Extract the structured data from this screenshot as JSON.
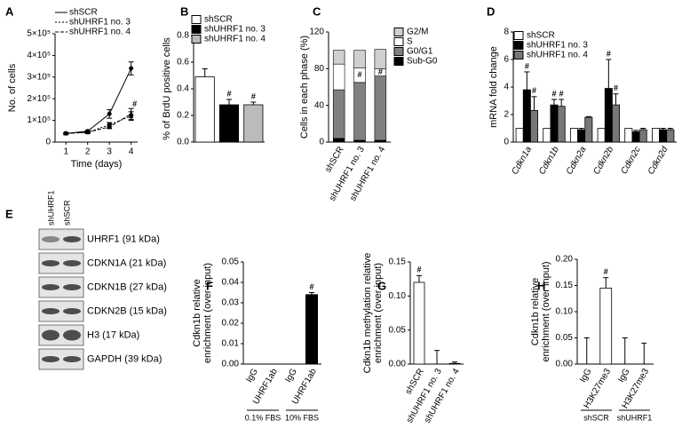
{
  "chart_data": [
    {
      "type": "line",
      "panel": "A",
      "ylabel": [
        "No. of cells"
      ],
      "xlabel": "Time (days)",
      "x": [
        1,
        2,
        3,
        4
      ],
      "xlim": [
        0.5,
        4.3
      ],
      "xticks": [
        1,
        2,
        3,
        4
      ],
      "ylim": [
        0,
        500000
      ],
      "yticks": [
        0,
        {
          "value": 100000,
          "label": "1×10⁵"
        },
        {
          "value": 200000,
          "label": "2×10⁵"
        },
        {
          "value": 300000,
          "label": "3×10⁵"
        },
        {
          "value": 400000,
          "label": "4×10⁵"
        },
        {
          "value": 500000,
          "label": "5×10⁵"
        }
      ],
      "series": [
        {
          "name": "shSCR",
          "color": "#000000",
          "values": [
            40000,
            50000,
            130000,
            340000
          ],
          "errors": [
            3000,
            5000,
            20000,
            30000
          ]
        },
        {
          "name": "shUHRF1 no. 3",
          "color": "#000000",
          "values": [
            40000,
            45000,
            80000,
            120000
          ],
          "errors": [
            2000,
            3000,
            10000,
            20000
          ],
          "markers": [
            null,
            null,
            null,
            "#"
          ]
        },
        {
          "name": "shUHRF1 no. 4",
          "color": "#000000",
          "values": [
            40000,
            45000,
            70000,
            130000
          ],
          "errors": [
            2000,
            3000,
            8000,
            25000
          ]
        }
      ]
    },
    {
      "type": "bar",
      "panel": "B",
      "ylabel": [
        "% of BrdU positive cells"
      ],
      "categories": [
        null
      ],
      "ylim": [
        0,
        0.8
      ],
      "yticks": [
        {
          "value": 0,
          "label": "0.0"
        },
        0.2,
        0.4,
        0.6,
        0.8
      ],
      "series": [
        {
          "name": "shSCR",
          "color": "#ffffff",
          "values": [
            0.49
          ],
          "errors": [
            0.06
          ]
        },
        {
          "name": "shUHRF1 no. 3",
          "color": "#000000",
          "values": [
            0.28
          ],
          "errors": [
            0.04
          ],
          "markers": [
            "#"
          ]
        },
        {
          "name": "shUHRF1 no. 4",
          "color": "#bbbbbb",
          "values": [
            0.28
          ],
          "errors": [
            0.02
          ],
          "markers": [
            "#"
          ]
        }
      ]
    },
    {
      "type": "stacked_bar",
      "panel": "C",
      "ylabel": [
        "Cells in each phase (%)"
      ],
      "categories": [
        "shSCR",
        "shUHRF1 no. 3",
        "shUHRF1 no. 4"
      ],
      "ylim": [
        0,
        120
      ],
      "yticks": [
        0,
        40,
        80,
        120
      ],
      "series": [
        {
          "name": "Sub-G0",
          "color": "#000000",
          "values": [
            4,
            2,
            2
          ]
        },
        {
          "name": "G0/G1",
          "color": "#808080",
          "values": [
            53,
            63,
            70
          ]
        },
        {
          "name": "S",
          "color": "#ffffff",
          "values": [
            28,
            16,
            8
          ],
          "markers": [
            null,
            "#",
            "#"
          ]
        },
        {
          "name": "G2/M",
          "color": "#d0d0d0",
          "values": [
            15,
            19,
            21
          ]
        }
      ]
    },
    {
      "type": "bar",
      "panel": "D",
      "ylabel": [
        "mRNA fold change"
      ],
      "categories": [
        "Cdkn1a",
        "Cdkn1b",
        "Cdkn2a",
        "Cdkn2b",
        "Cdkn2c",
        "Cdkn2d"
      ],
      "ylim": [
        0,
        8
      ],
      "yticks": [
        0,
        2,
        4,
        6,
        8
      ],
      "series": [
        {
          "name": "shSCR",
          "color": "#ffffff",
          "values": [
            1,
            1,
            1,
            1,
            1,
            1
          ]
        },
        {
          "name": "shUHRF1 no. 3",
          "color": "#000000",
          "values": [
            3.8,
            2.7,
            0.9,
            3.9,
            0.75,
            0.9
          ],
          "errors": [
            1.3,
            0.4,
            0.1,
            2.1,
            0.1,
            0.1
          ],
          "markers": [
            "#",
            "#",
            null,
            "#",
            null,
            null
          ]
        },
        {
          "name": "shUHRF1 no. 4",
          "color": "#777777",
          "values": [
            2.3,
            2.6,
            1.8,
            2.7,
            0.9,
            0.9
          ],
          "errors": [
            1.0,
            0.5,
            0.05,
            0.8,
            0.1,
            0.1
          ],
          "markers": [
            "#",
            "#",
            null,
            "#",
            null,
            null
          ]
        }
      ]
    },
    {
      "type": "bar",
      "panel": "F",
      "ylabel": [
        "Cdkn1b relative",
        "enrichment (over input)"
      ],
      "categories": [
        "IgG",
        "UHRF1ab",
        "IgG",
        "UHRF1ab"
      ],
      "groups": [
        "0.1% FBS",
        "10% FBS"
      ],
      "ylim": [
        0,
        0.05
      ],
      "yticks": [
        {
          "value": 0,
          "label": "0.00"
        },
        0.01,
        0.02,
        0.03,
        0.04,
        0.05
      ],
      "series": [
        {
          "color": "#000000",
          "values": [
            0,
            0,
            0,
            0.034
          ],
          "errors": [
            0,
            0,
            0,
            0.001
          ],
          "markers": [
            null,
            null,
            null,
            "#"
          ]
        }
      ]
    },
    {
      "type": "bar",
      "panel": "G",
      "ylabel": [
        "Cdkn1b methylation relative",
        "enrichment (over input)"
      ],
      "categories": [
        "shSCR",
        "shUHRF1 no. 3",
        "shUHRF1 no. 4"
      ],
      "ylim": [
        0,
        0.15
      ],
      "yticks": [
        {
          "value": 0,
          "label": "0.00"
        },
        0.05,
        {
          "value": 0.1,
          "label": "0.10"
        },
        0.15
      ],
      "series": [
        {
          "color": "#ffffff",
          "values": [
            0.12,
            0,
            0.001
          ],
          "errors": [
            0.01,
            0.02,
            0.002
          ],
          "markers": [
            "#",
            null,
            null
          ]
        }
      ]
    },
    {
      "type": "bar",
      "panel": "H",
      "ylabel": [
        "Cdkn1b relative",
        "enrichment (over input)"
      ],
      "categories": [
        "IgG",
        "H3K27me3",
        "IgG",
        "H3K27me3"
      ],
      "groups": [
        "shSCR",
        "shUHRF1"
      ],
      "ylim": [
        0,
        0.2
      ],
      "yticks": [
        {
          "value": 0,
          "label": "0.00"
        },
        0.05,
        {
          "value": 0.1,
          "label": "0.10"
        },
        0.15,
        {
          "value": 0.2,
          "label": "0.20"
        }
      ],
      "series": [
        {
          "color": "#ffffff",
          "values": [
            0,
            0.145,
            0,
            0
          ],
          "errors": [
            0.05,
            0.02,
            0.05,
            0.04
          ],
          "markers": [
            null,
            "#",
            null,
            null
          ]
        }
      ]
    }
  ],
  "blot": {
    "panel": "E",
    "lanes": [
      "shUHRF1",
      "shSCR"
    ],
    "rows": [
      "UHRF1 (91 kDa)",
      "CDKN1A (21 kDa)",
      "CDKN1B (27 kDa)",
      "CDKN2B (15 kDa)",
      "H3 (17 kDa)",
      "GAPDH (39 kDa)"
    ]
  }
}
